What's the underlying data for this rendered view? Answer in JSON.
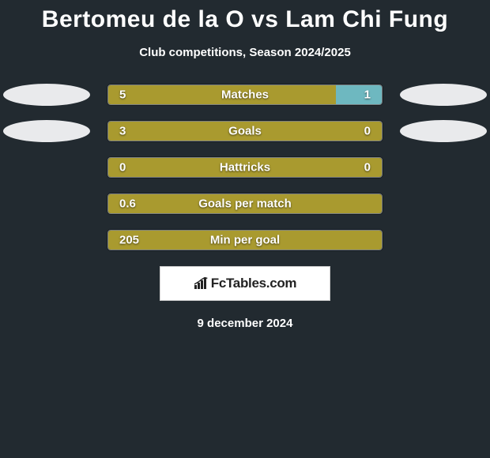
{
  "title": "Bertomeu de la O vs Lam Chi Fung",
  "subtitle": "Club competitions, Season 2024/2025",
  "date": "9 december 2024",
  "logo_text": "FcTables.com",
  "colors": {
    "left_bar": "#a99a2f",
    "right_bar": "#6eb8c0",
    "background": "#222a30",
    "badge_bg": "#e9eaec",
    "logo_bg": "#ffffff",
    "text": "#ffffff"
  },
  "chart": {
    "track_width": 348,
    "rows": [
      {
        "label": "Matches",
        "left_val": "5",
        "right_val": "1",
        "left_num": 5,
        "right_num": 1,
        "badge_left": true,
        "badge_right": true
      },
      {
        "label": "Goals",
        "left_val": "3",
        "right_val": "0",
        "left_num": 3,
        "right_num": 0,
        "badge_left": true,
        "badge_right": true
      },
      {
        "label": "Hattricks",
        "left_val": "0",
        "right_val": "0",
        "left_num": 0,
        "right_num": 0,
        "badge_left": false,
        "badge_right": false
      },
      {
        "label": "Goals per match",
        "left_val": "0.6",
        "right_val": "",
        "left_num": 0.6,
        "right_num": 0,
        "badge_left": false,
        "badge_right": false
      },
      {
        "label": "Min per goal",
        "left_val": "205",
        "right_val": "",
        "left_num": 205,
        "right_num": 0,
        "badge_left": false,
        "badge_right": false
      }
    ]
  }
}
